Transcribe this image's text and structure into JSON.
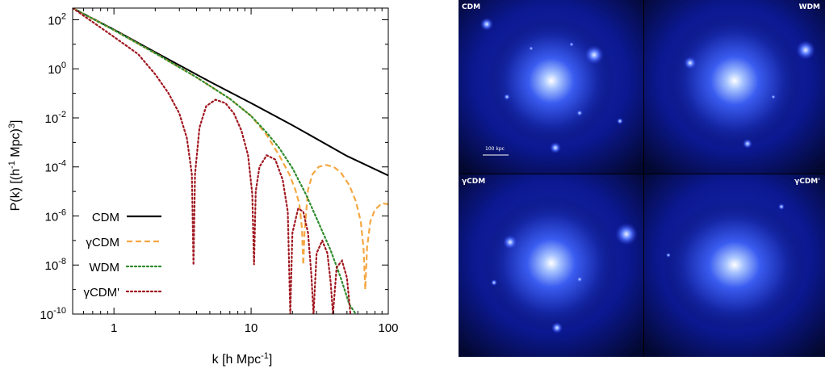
{
  "chart_data": [
    {
      "type": "line",
      "title": "",
      "xlabel": "k [h Mpc-1]",
      "ylabel": "P(k) [(h-1 Mpc)3]",
      "xscale": "log",
      "yscale": "log",
      "xlim": [
        0.5,
        100
      ],
      "ylim": [
        1e-10,
        300
      ],
      "x_ticks": [
        {
          "value": 1,
          "label": "1"
        },
        {
          "value": 10,
          "label": "10"
        },
        {
          "value": 100,
          "label": "100"
        }
      ],
      "y_ticks": [
        {
          "value": 1e-10,
          "base": "10",
          "exp": "-10"
        },
        {
          "value": 1e-08,
          "base": "10",
          "exp": "-8"
        },
        {
          "value": 1e-06,
          "base": "10",
          "exp": "-6"
        },
        {
          "value": 0.0001,
          "base": "10",
          "exp": "-4"
        },
        {
          "value": 0.01,
          "base": "10",
          "exp": "-2"
        },
        {
          "value": 1,
          "base": "10",
          "exp": "0"
        },
        {
          "value": 100,
          "base": "10",
          "exp": "2"
        }
      ],
      "grid": false,
      "legend": "bottom-left",
      "series": [
        {
          "name": "CDM",
          "color": "#000000",
          "dash": "solid",
          "points": [
            [
              0.5,
              300
            ],
            [
              1,
              40
            ],
            [
              2,
              4.8
            ],
            [
              5,
              0.3
            ],
            [
              10,
              0.04
            ],
            [
              20,
              0.005
            ],
            [
              50,
              0.00028
            ],
            [
              100,
              4.5e-05
            ]
          ]
        },
        {
          "name": "γCDM",
          "color": "#f5a742",
          "dash": "dashed",
          "points": [
            [
              0.5,
              300
            ],
            [
              1,
              38
            ],
            [
              2,
              4.3
            ],
            [
              4,
              0.45
            ],
            [
              7,
              0.06
            ],
            [
              10,
              0.012
            ],
            [
              13,
              0.002
            ],
            [
              16,
              0.0003
            ],
            [
              19,
              5e-05
            ],
            [
              21,
              1.2e-05
            ],
            [
              22.5,
              3e-06
            ],
            [
              23.5,
              3e-07
            ],
            [
              24,
              1e-08
            ],
            [
              24.5,
              2e-07
            ],
            [
              26,
              1.2e-05
            ],
            [
              28,
              5e-05
            ],
            [
              31,
              0.0001
            ],
            [
              35,
              0.00012
            ],
            [
              40,
              0.0001
            ],
            [
              45,
              6e-05
            ],
            [
              52,
              1.8e-05
            ],
            [
              58,
              4e-06
            ],
            [
              63,
              6e-07
            ],
            [
              66,
              5e-08
            ],
            [
              68,
              1e-09
            ],
            [
              70,
              5e-08
            ],
            [
              74,
              6e-07
            ],
            [
              80,
              1.8e-06
            ],
            [
              90,
              3.3e-06
            ],
            [
              100,
              3e-06
            ]
          ]
        },
        {
          "name": "WDM",
          "color": "#2e8b2e",
          "dash": "dotted",
          "points": [
            [
              0.5,
              300
            ],
            [
              1,
              38
            ],
            [
              2,
              4.3
            ],
            [
              4,
              0.45
            ],
            [
              7,
              0.06
            ],
            [
              10,
              0.012
            ],
            [
              13,
              0.0025
            ],
            [
              16,
              0.0006
            ],
            [
              20,
              9e-05
            ],
            [
              25,
              8e-06
            ],
            [
              30,
              8e-07
            ],
            [
              38,
              4e-08
            ],
            [
              45,
              3e-09
            ],
            [
              52,
              2.5e-10
            ],
            [
              58,
              1e-10
            ]
          ]
        },
        {
          "name": "γCDM'",
          "color": "#a01820",
          "dash": "dotted",
          "points": [
            [
              0.5,
              300
            ],
            [
              1,
              20
            ],
            [
              1.5,
              4
            ],
            [
              2,
              0.6
            ],
            [
              2.5,
              0.1
            ],
            [
              3,
              0.015
            ],
            [
              3.4,
              0.0015
            ],
            [
              3.7,
              5e-05
            ],
            [
              3.8,
              1e-08
            ],
            [
              3.9,
              5e-05
            ],
            [
              4.2,
              0.004
            ],
            [
              4.7,
              0.03
            ],
            [
              5.5,
              0.055
            ],
            [
              6.5,
              0.04
            ],
            [
              7.5,
              0.015
            ],
            [
              8.5,
              0.003
            ],
            [
              9.5,
              0.0003
            ],
            [
              10.2,
              8e-06
            ],
            [
              10.5,
              1e-08
            ],
            [
              10.8,
              1e-05
            ],
            [
              11.5,
              0.0001
            ],
            [
              13,
              0.0003
            ],
            [
              15,
              0.0002
            ],
            [
              17,
              3e-05
            ],
            [
              18.5,
              1.5e-06
            ],
            [
              19.3,
              1e-10
            ],
            [
              20,
              2e-07
            ],
            [
              22,
              2e-06
            ],
            [
              24,
              1.5e-06
            ],
            [
              26,
              2e-07
            ],
            [
              27.5,
              4e-09
            ],
            [
              28.5,
              1e-10
            ],
            [
              30,
              3e-08
            ],
            [
              33,
              1e-07
            ],
            [
              36,
              3e-08
            ],
            [
              38,
              2e-09
            ],
            [
              39.5,
              1e-10
            ],
            [
              42,
              8e-09
            ],
            [
              46,
              1.5e-08
            ],
            [
              50,
              3e-09
            ],
            [
              53,
              1e-10
            ]
          ]
        }
      ]
    },
    {
      "type": "image-grid",
      "panels": [
        {
          "label": "CDM",
          "label_align": "left",
          "scale_bar": "100 kpc"
        },
        {
          "label": "WDM",
          "label_align": "right"
        },
        {
          "label": "γCDM",
          "label_align": "left"
        },
        {
          "label": "γCDM'",
          "label_align": "right"
        }
      ]
    }
  ]
}
